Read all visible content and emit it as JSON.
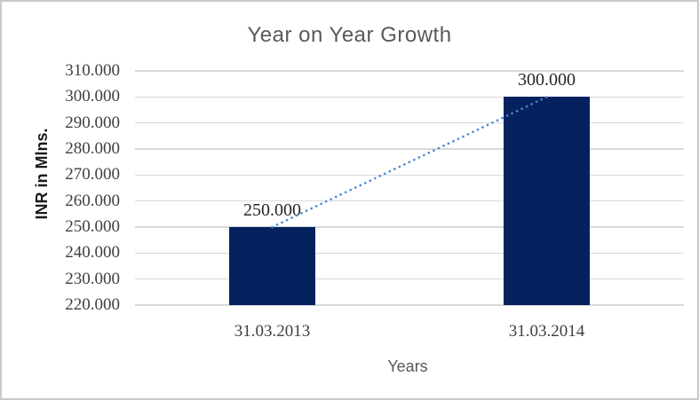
{
  "chart_data": {
    "type": "bar",
    "title": "Year on Year Growth",
    "xlabel": "Years",
    "ylabel": "INR in Mlns.",
    "categories": [
      "31.03.2013",
      "31.03.2014"
    ],
    "values": [
      250.0,
      300.0
    ],
    "value_labels": [
      "250.000",
      "300.000"
    ],
    "ylim": [
      220,
      310
    ],
    "ytick_step": 10,
    "ytick_labels": [
      "220.000",
      "230.000",
      "240.000",
      "250.000",
      "260.000",
      "270.000",
      "280.000",
      "290.000",
      "300.000",
      "310.000"
    ],
    "grid": true,
    "legend": false,
    "trendline": {
      "present": true,
      "style": "dotted",
      "from_value": 250.0,
      "to_value": 300.0
    },
    "colors": {
      "bar": "#05215e",
      "trendline": "#4a86d6",
      "gridline": "#d9d9d9",
      "title_text": "#595959",
      "axis_title_text": "#595959",
      "tick_text": "#3f3f3f",
      "data_label_text": "#262626",
      "y_axis_title_text": "#1a1a1a",
      "chart_border": "#c9c9c9",
      "background": "#ffffff"
    }
  }
}
